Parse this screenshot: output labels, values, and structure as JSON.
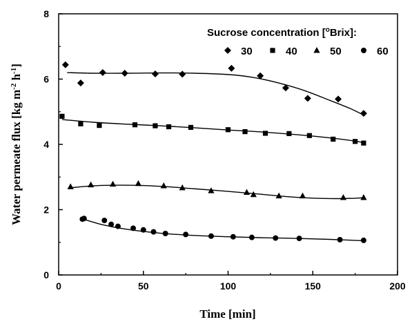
{
  "chart_data": {
    "type": "scatter",
    "xlabel": "Time [min]",
    "ylabel": "Water permeate flux [kg m",
    "ylabel_exp1": "-2",
    "ylabel_mid": " h",
    "ylabel_exp2": "-1",
    "ylabel_end": "]",
    "xlim": [
      0,
      200
    ],
    "ylim": [
      0,
      8
    ],
    "xticks": [
      "0",
      "50",
      "100",
      "150",
      "200"
    ],
    "yticks": [
      "0",
      "2",
      "4",
      "6",
      "8"
    ],
    "legend": {
      "title": "Sucrose concentration [",
      "title_sup": "o",
      "title_end": "Brix]:",
      "placement": "top-right"
    },
    "grid": false,
    "series": [
      {
        "name": "30",
        "marker": "diamond",
        "points": [
          [
            4,
            6.44
          ],
          [
            13,
            5.88
          ],
          [
            26,
            6.2
          ],
          [
            39,
            6.18
          ],
          [
            57,
            6.16
          ],
          [
            73,
            6.15
          ],
          [
            102,
            6.33
          ],
          [
            119,
            6.1
          ],
          [
            134,
            5.73
          ],
          [
            147,
            5.41
          ],
          [
            165,
            5.39
          ],
          [
            180,
            4.95
          ]
        ],
        "fit": [
          [
            5,
            6.2
          ],
          [
            20,
            6.18
          ],
          [
            40,
            6.18
          ],
          [
            60,
            6.19
          ],
          [
            80,
            6.18
          ],
          [
            100,
            6.14
          ],
          [
            115,
            6.05
          ],
          [
            130,
            5.88
          ],
          [
            145,
            5.65
          ],
          [
            160,
            5.35
          ],
          [
            172,
            5.1
          ],
          [
            180,
            4.9
          ]
        ]
      },
      {
        "name": "40",
        "marker": "square",
        "points": [
          [
            2,
            4.86
          ],
          [
            13,
            4.63
          ],
          [
            24,
            4.58
          ],
          [
            45,
            4.6
          ],
          [
            57,
            4.57
          ],
          [
            65,
            4.54
          ],
          [
            78,
            4.52
          ],
          [
            100,
            4.45
          ],
          [
            110,
            4.39
          ],
          [
            122,
            4.34
          ],
          [
            136,
            4.33
          ],
          [
            148,
            4.27
          ],
          [
            162,
            4.16
          ],
          [
            175,
            4.09
          ],
          [
            180,
            4.04
          ]
        ],
        "fit": [
          [
            2,
            4.76
          ],
          [
            20,
            4.68
          ],
          [
            40,
            4.62
          ],
          [
            60,
            4.57
          ],
          [
            80,
            4.51
          ],
          [
            100,
            4.44
          ],
          [
            120,
            4.38
          ],
          [
            140,
            4.3
          ],
          [
            160,
            4.2
          ],
          [
            175,
            4.1
          ],
          [
            180,
            4.05
          ]
        ]
      },
      {
        "name": "50",
        "marker": "triangle",
        "points": [
          [
            7,
            2.7
          ],
          [
            19,
            2.76
          ],
          [
            32,
            2.78
          ],
          [
            47,
            2.8
          ],
          [
            62,
            2.73
          ],
          [
            73,
            2.67
          ],
          [
            90,
            2.58
          ],
          [
            111,
            2.53
          ],
          [
            115,
            2.46
          ],
          [
            130,
            2.42
          ],
          [
            144,
            2.42
          ],
          [
            168,
            2.37
          ],
          [
            180,
            2.37
          ]
        ],
        "fit": [
          [
            7,
            2.67
          ],
          [
            20,
            2.73
          ],
          [
            35,
            2.75
          ],
          [
            50,
            2.74
          ],
          [
            65,
            2.7
          ],
          [
            80,
            2.64
          ],
          [
            100,
            2.56
          ],
          [
            120,
            2.47
          ],
          [
            140,
            2.38
          ],
          [
            160,
            2.34
          ],
          [
            175,
            2.35
          ],
          [
            180,
            2.37
          ]
        ]
      },
      {
        "name": "60",
        "marker": "circle",
        "points": [
          [
            14,
            1.71
          ],
          [
            15,
            1.73
          ],
          [
            27,
            1.67
          ],
          [
            31,
            1.55
          ],
          [
            35,
            1.49
          ],
          [
            44,
            1.43
          ],
          [
            50,
            1.38
          ],
          [
            56,
            1.32
          ],
          [
            63,
            1.27
          ],
          [
            75,
            1.24
          ],
          [
            90,
            1.19
          ],
          [
            103,
            1.17
          ],
          [
            114,
            1.15
          ],
          [
            128,
            1.13
          ],
          [
            142,
            1.12
          ],
          [
            166,
            1.08
          ],
          [
            180,
            1.06
          ]
        ],
        "fit": [
          [
            14,
            1.72
          ],
          [
            25,
            1.55
          ],
          [
            40,
            1.4
          ],
          [
            60,
            1.28
          ],
          [
            80,
            1.21
          ],
          [
            100,
            1.17
          ],
          [
            120,
            1.14
          ],
          [
            140,
            1.12
          ],
          [
            160,
            1.09
          ],
          [
            180,
            1.05
          ]
        ]
      }
    ]
  }
}
